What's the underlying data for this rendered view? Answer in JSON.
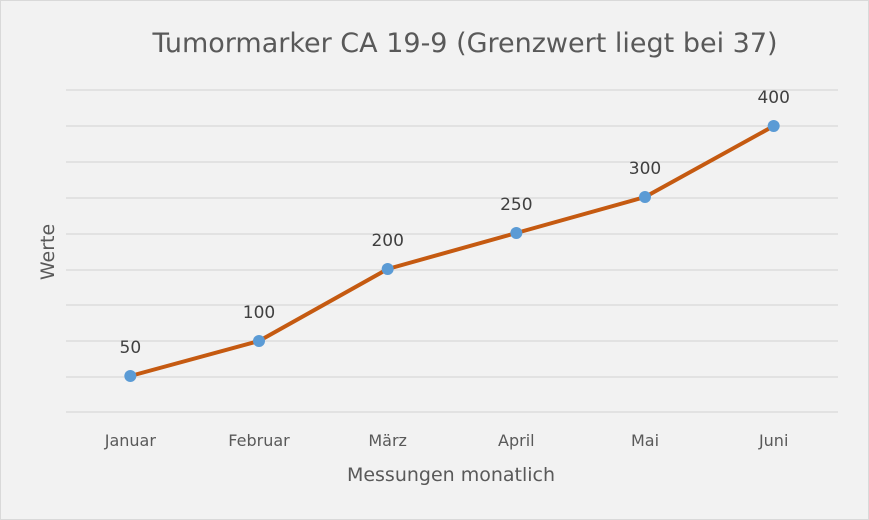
{
  "chart_data": {
    "type": "line",
    "title": "Tumormarker CA 19-9 (Grenzwert liegt bei 37)",
    "xlabel": "Messungen monatlich",
    "ylabel": "Werte",
    "categories": [
      "Januar",
      "Februar",
      "März",
      "April",
      "Mai",
      "Juni"
    ],
    "series": [
      {
        "name": "CA 19-9",
        "values": [
          50,
          100,
          200,
          250,
          300,
          400
        ],
        "line_color": "#c55a11",
        "marker_color": "#5b9bd5"
      }
    ],
    "data_labels": [
      "50",
      "100",
      "200",
      "250",
      "300",
      "400"
    ],
    "grid": true,
    "legend": "none",
    "y_tick_labels_visible": false
  },
  "colors": {
    "background": "#f2f2f2",
    "gridline": "#d9d9d9",
    "line": "#c55a11",
    "marker": "#5b9bd5",
    "text": "#595959"
  }
}
